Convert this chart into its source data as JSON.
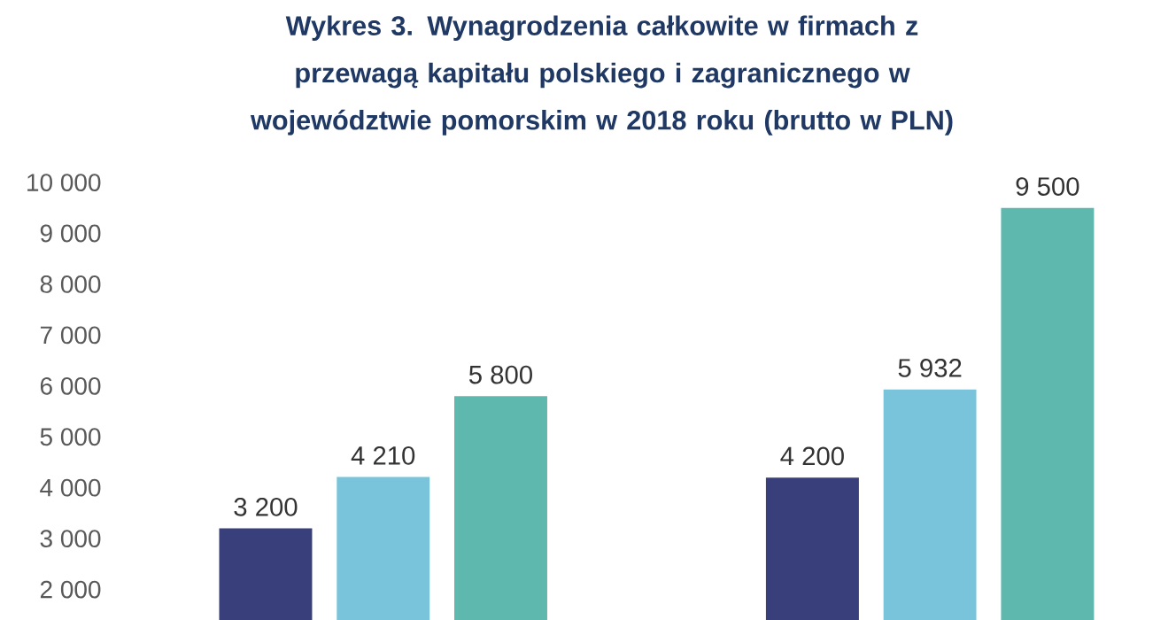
{
  "chart_data": {
    "type": "bar",
    "title": "Wykres 3. Wynagrodzenia całkowite w firmach z przewagą kapitału polskiego i zagranicznego w województwie pomorskim w 2018 roku (brutto w PLN)",
    "categories": [
      null,
      null
    ],
    "series": [
      {
        "color": "#393f7b",
        "values": [
          3200,
          4200
        ],
        "value_labels": [
          "3 200",
          "4 200"
        ]
      },
      {
        "color": "#79c4da",
        "values": [
          4210,
          5932
        ],
        "value_labels": [
          "4 210",
          "5 932"
        ]
      },
      {
        "color": "#5eb8ae",
        "values": [
          5800,
          9500
        ],
        "value_labels": [
          "5 800",
          "9 500"
        ]
      }
    ],
    "ylim": [
      1400,
      10000
    ],
    "yticks": [
      {
        "value": 2000,
        "label": "2 000"
      },
      {
        "value": 3000,
        "label": "3 000"
      },
      {
        "value": 4000,
        "label": "4 000"
      },
      {
        "value": 5000,
        "label": "5 000"
      },
      {
        "value": 6000,
        "label": "6 000"
      },
      {
        "value": 7000,
        "label": "7 000"
      },
      {
        "value": 8000,
        "label": "8 000"
      },
      {
        "value": 9000,
        "label": "9 000"
      },
      {
        "value": 10000,
        "label": "10 000"
      }
    ]
  }
}
